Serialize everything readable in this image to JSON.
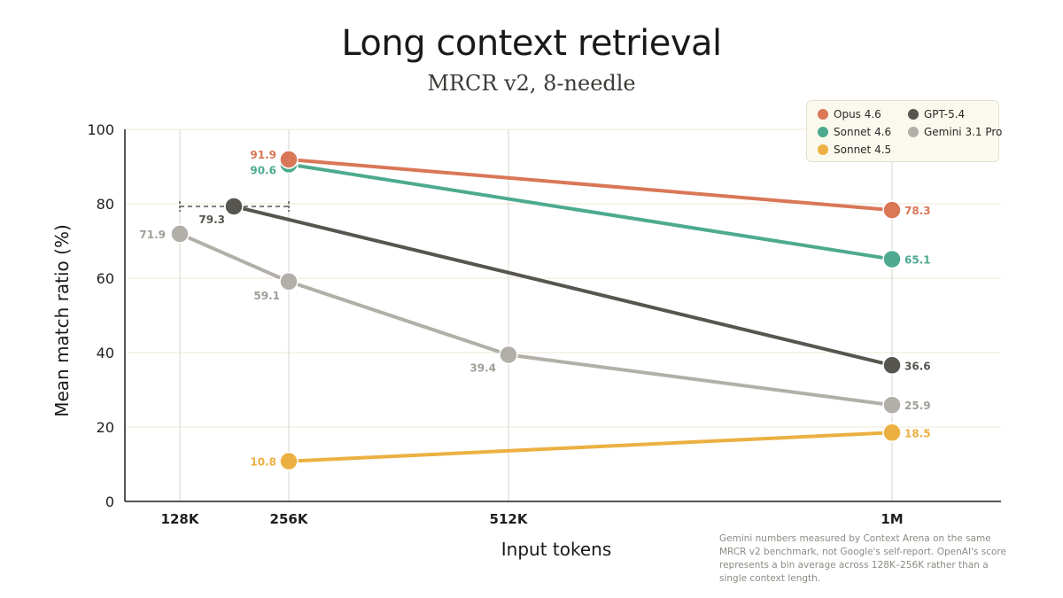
{
  "chart_data": {
    "type": "line",
    "title": "Long context retrieval",
    "subtitle": "MRCR v2, 8-needle",
    "xlabel": "Input tokens",
    "ylabel": "Mean match ratio (%)",
    "x_categories": [
      "128K",
      "256K",
      "512K",
      "1M"
    ],
    "ylim": [
      0,
      100
    ],
    "yticks": [
      0,
      20,
      40,
      60,
      80,
      100
    ],
    "grid": "vertical at x categories, horizontal at y ticks",
    "legend_position": "top-right",
    "series": [
      {
        "name": "Opus 4.6",
        "color": "#d97757",
        "x": [
          "256K",
          "1M"
        ],
        "y": [
          91.9,
          78.3
        ],
        "labels": [
          "91.9",
          "78.3"
        ]
      },
      {
        "name": "Sonnet 4.6",
        "color": "#4daa8f",
        "x": [
          "256K",
          "1M"
        ],
        "y": [
          90.6,
          65.1
        ],
        "labels": [
          "90.6",
          "65.1"
        ]
      },
      {
        "name": "Sonnet 4.5",
        "color": "#ecb042",
        "x": [
          "256K",
          "1M"
        ],
        "y": [
          10.8,
          18.5
        ],
        "labels": [
          "10.8",
          "18.5"
        ]
      },
      {
        "name": "GPT-5.4",
        "color": "#57554f",
        "x": [
          "192K",
          "1M"
        ],
        "y": [
          79.3,
          36.6
        ],
        "labels": [
          "79.3",
          "36.6"
        ],
        "range_bar": [
          "128K",
          "256K"
        ]
      },
      {
        "name": "Gemini 3.1 Pro",
        "color": "#b1afa8",
        "x": [
          "128K",
          "256K",
          "512K",
          "1M"
        ],
        "y": [
          71.9,
          59.1,
          39.4,
          25.9
        ],
        "labels": [
          "71.9",
          "59.1",
          "39.4",
          "25.9"
        ]
      }
    ],
    "footnote": "Gemini numbers measured by Context Arena on the same MRCR v2 benchmark, not Google's self-report. OpenAI's score represents a bin average across 128K–256K rather than a single context length."
  }
}
